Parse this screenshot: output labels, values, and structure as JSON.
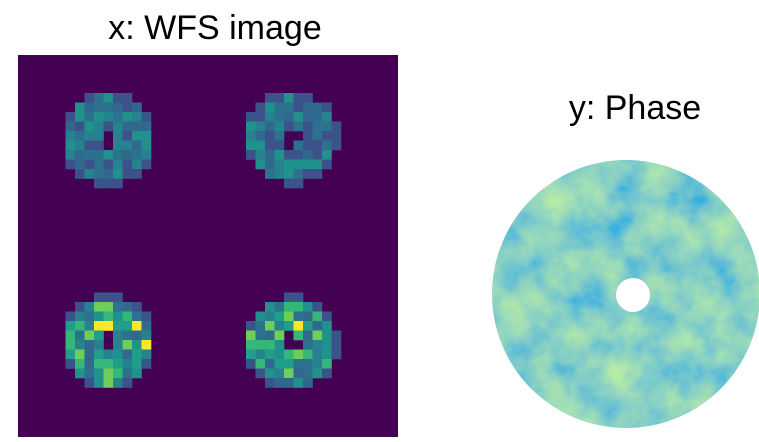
{
  "panels": [
    {
      "title": "x: WFS image"
    },
    {
      "title": "y: Phase"
    }
  ]
}
